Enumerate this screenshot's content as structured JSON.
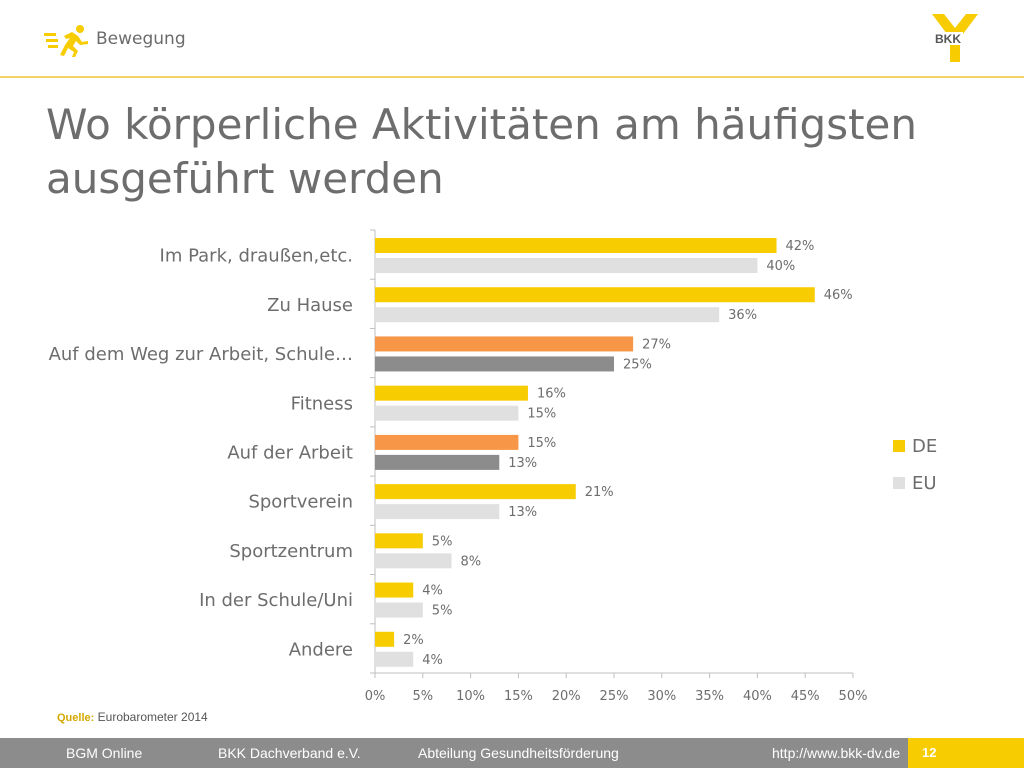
{
  "header": {
    "section": "Bewegung",
    "logo_text": "BKK"
  },
  "title_line1": "Wo körperliche Aktivitäten am häufigsten",
  "title_line2": "ausgeführt werden",
  "source": {
    "label": "Quelle:",
    "text": "Eurobarometer 2014"
  },
  "footer": {
    "item1": "BGM Online",
    "item2": "BKK Dachverband e.V.",
    "item3": "Abteilung Gesundheitsförderung",
    "url": "http://www.bkk-dv.de",
    "page": "12"
  },
  "colors": {
    "de": "#f7cc00",
    "eu": "#e0e0e0",
    "de_highlight": "#f79646",
    "eu_highlight": "#8c8c8c",
    "accent": "#f5d36b"
  },
  "chart_data": {
    "type": "bar",
    "orientation": "horizontal",
    "categories": [
      "Im Park, draußen,etc.",
      "Zu Hause",
      "Auf dem Weg zur Arbeit, Schule…",
      "Fitness",
      "Auf der Arbeit",
      "Sportverein",
      "Sportzentrum",
      "In der Schule/Uni",
      "Andere"
    ],
    "series": [
      {
        "name": "DE",
        "values": [
          42,
          46,
          27,
          16,
          15,
          21,
          5,
          4,
          2
        ]
      },
      {
        "name": "EU",
        "values": [
          40,
          36,
          25,
          15,
          13,
          13,
          8,
          5,
          4
        ]
      }
    ],
    "highlighted_categories": [
      "Auf dem Weg zur Arbeit, Schule…",
      "Auf der Arbeit"
    ],
    "x_ticks": [
      "0%",
      "5%",
      "10%",
      "15%",
      "20%",
      "25%",
      "30%",
      "35%",
      "40%",
      "45%",
      "50%"
    ],
    "xlim": [
      0,
      50
    ],
    "unit": "%",
    "legend_position": "right",
    "grid": false
  }
}
